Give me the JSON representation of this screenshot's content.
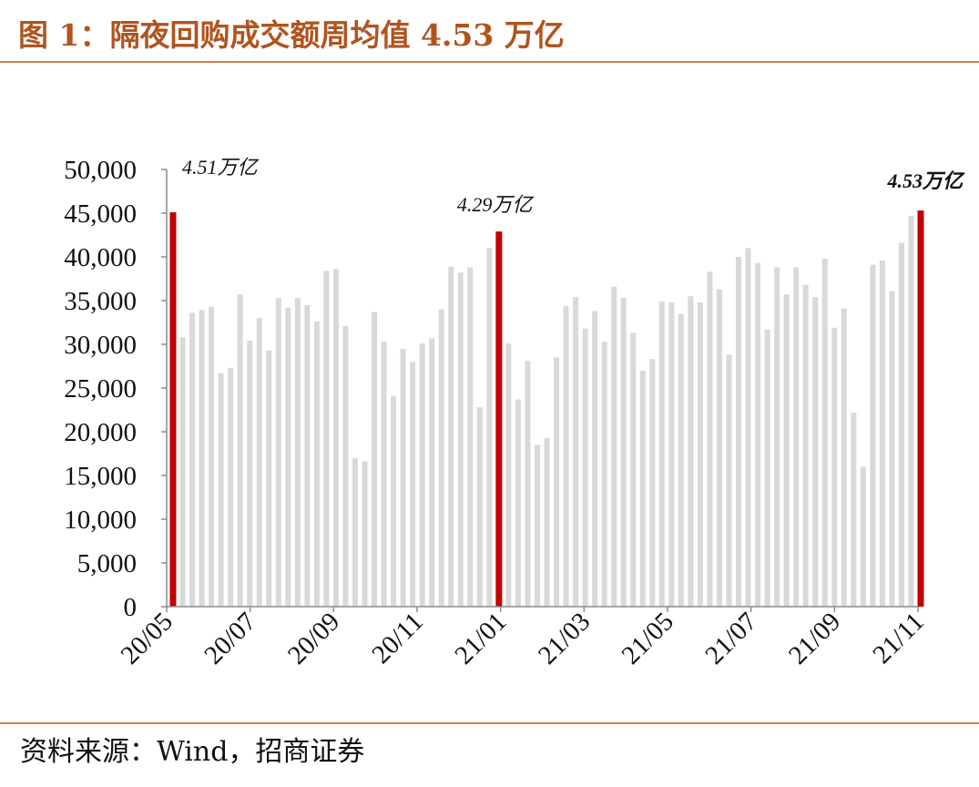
{
  "title": "图 1：隔夜回购成交额周均值 4.53 万亿",
  "source": "资料来源：Wind，招商证券",
  "colors": {
    "title": "#b0541e",
    "rule": "#c8834e",
    "bar": "#d9d9d9",
    "highlight": "#c00000"
  },
  "chart_data": {
    "type": "bar",
    "title": "",
    "xlabel": "",
    "ylabel": "",
    "ylim": [
      0,
      50000
    ],
    "yticks": [
      "0",
      "5,000",
      "10,000",
      "15,000",
      "20,000",
      "25,000",
      "30,000",
      "35,000",
      "40,000",
      "45,000",
      "50,000"
    ],
    "xticks": [
      "20/05",
      "20/07",
      "20/09",
      "20/11",
      "21/01",
      "21/03",
      "21/05",
      "21/07",
      "21/09",
      "21/11"
    ],
    "grid": false,
    "values": [
      45100,
      30800,
      33600,
      33900,
      34300,
      26700,
      27300,
      35700,
      30400,
      33000,
      29300,
      35300,
      34200,
      35300,
      34500,
      32600,
      38400,
      38600,
      32100,
      17000,
      16600,
      33700,
      30300,
      24100,
      29500,
      28000,
      30100,
      30700,
      34000,
      38900,
      38200,
      38800,
      22800,
      41000,
      42900,
      30100,
      23700,
      28100,
      18500,
      19300,
      28500,
      34400,
      35400,
      31800,
      33800,
      30300,
      36600,
      35300,
      31300,
      27000,
      28300,
      34900,
      34800,
      33500,
      35500,
      34800,
      38300,
      36300,
      28800,
      40000,
      41000,
      39300,
      31700,
      38800,
      35700,
      38800,
      36800,
      35400,
      39800,
      31900,
      34100,
      22200,
      16000,
      39100,
      39600,
      36100,
      41600,
      44700,
      45300
    ],
    "highlight_indices": [
      0,
      34,
      78
    ],
    "annotations": [
      {
        "index": 0,
        "text": "4.51万亿"
      },
      {
        "index": 34,
        "text": "4.29万亿"
      },
      {
        "index": 78,
        "text": "4.53万亿"
      }
    ]
  }
}
